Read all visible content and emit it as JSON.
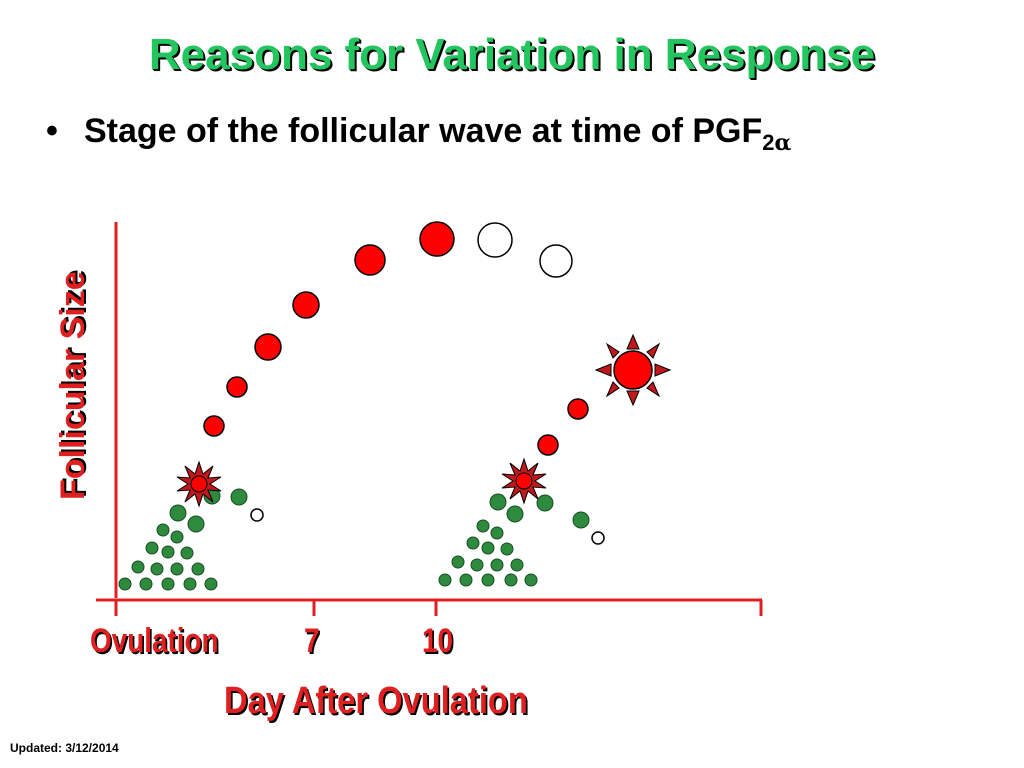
{
  "slide": {
    "title": "Reasons for Variation in Response",
    "bullet": {
      "symbol": "•",
      "text": "Stage of the follicular wave at time of PGF",
      "subscript": "2",
      "greek": "α"
    }
  },
  "axes": {
    "ylabel": "Follicular Size",
    "xlabel": "Day After Ovulation",
    "xticks": [
      "Ovulation",
      "7",
      "10"
    ]
  },
  "colors": {
    "title_green": "#22c55e",
    "axis_red": "#e02020",
    "follicle_red": "#ff0000",
    "follicle_green": "#2e8b3e",
    "regressed_white": "#ffffff"
  },
  "footer": {
    "text": "Updated: 3/12/2014"
  }
}
